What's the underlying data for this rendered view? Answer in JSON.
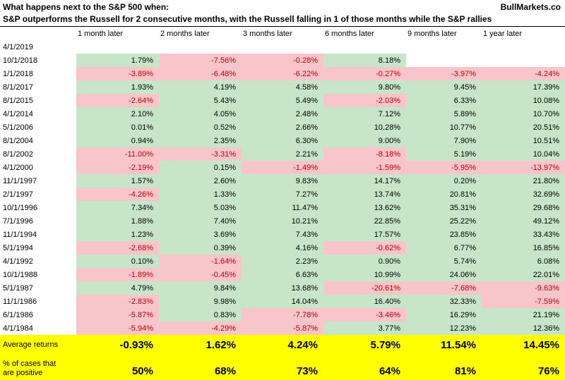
{
  "header": {
    "title": "What happens next to the S&P 500 when:",
    "brand": "BullMarkets.co",
    "subtitle": "S&P outperforms the Russell for 2 consecutive months, with the Russell falling in 1 of those months while the S&P rallies"
  },
  "colors": {
    "positive_bg": "#c7e5c9",
    "negative_bg": "#f8c6ca",
    "negative_text": "#c00000",
    "summary_bg": "#ffff00"
  },
  "chart_data": {
    "type": "table",
    "title": "What happens next to the S&P 500 when: S&P outperforms the Russell for 2 consecutive months, with the Russell falling in 1 of those months while the S&P rallies",
    "columns": [
      "1 month later",
      "2 months later",
      "3 months later",
      "6 months later",
      "9 months later",
      "1 year later"
    ],
    "rows": [
      {
        "date": "4/1/2019",
        "values": [
          "",
          "",
          "",
          "",
          "",
          ""
        ]
      },
      {
        "date": "10/1/2018",
        "values": [
          "1.79%",
          "-7.56%",
          "-0.28%",
          "8.18%",
          "",
          ""
        ]
      },
      {
        "date": "1/1/2018",
        "values": [
          "-3.89%",
          "-6.48%",
          "-6.22%",
          "-0.27%",
          "-3.97%",
          "-4.24%"
        ]
      },
      {
        "date": "8/1/2017",
        "values": [
          "1.93%",
          "4.19%",
          "4.58%",
          "9.80%",
          "9.45%",
          "17.39%"
        ]
      },
      {
        "date": "8/1/2015",
        "values": [
          "-2.64%",
          "5.43%",
          "5.49%",
          "-2.03%",
          "6.33%",
          "10.08%"
        ]
      },
      {
        "date": "4/1/2014",
        "values": [
          "2.10%",
          "4.05%",
          "2.48%",
          "7.12%",
          "5.89%",
          "10.70%"
        ]
      },
      {
        "date": "5/1/2006",
        "values": [
          "0.01%",
          "0.52%",
          "2.66%",
          "10.28%",
          "10.77%",
          "20.51%"
        ]
      },
      {
        "date": "8/1/2004",
        "values": [
          "0.94%",
          "2.35%",
          "6.30%",
          "9.00%",
          "7.90%",
          "10.51%"
        ]
      },
      {
        "date": "8/1/2002",
        "values": [
          "-11.00%",
          "-3.31%",
          "2.21%",
          "-8.18%",
          "5.19%",
          "10.04%"
        ]
      },
      {
        "date": "4/1/2000",
        "values": [
          "-2.19%",
          "0.15%",
          "-1.49%",
          "-1.59%",
          "-5.95%",
          "-13.97%"
        ]
      },
      {
        "date": "11/1/1997",
        "values": [
          "1.57%",
          "2.60%",
          "9.83%",
          "14.17%",
          "0.20%",
          "21.80%"
        ]
      },
      {
        "date": "2/1/1997",
        "values": [
          "-4.26%",
          "1.33%",
          "7.27%",
          "13.74%",
          "20.81%",
          "32.69%"
        ]
      },
      {
        "date": "10/1/1996",
        "values": [
          "7.34%",
          "5.03%",
          "11.47%",
          "13.62%",
          "35.31%",
          "29.68%"
        ]
      },
      {
        "date": "7/1/1996",
        "values": [
          "1.88%",
          "7.40%",
          "10.21%",
          "22.85%",
          "25.22%",
          "49.12%"
        ]
      },
      {
        "date": "11/1/1994",
        "values": [
          "1.23%",
          "3.69%",
          "7.43%",
          "17.57%",
          "23.85%",
          "33.43%"
        ]
      },
      {
        "date": "5/1/1994",
        "values": [
          "-2.68%",
          "0.39%",
          "4.16%",
          "-0.62%",
          "6.77%",
          "16.85%"
        ]
      },
      {
        "date": "4/1/1992",
        "values": [
          "0.10%",
          "-1.64%",
          "2.23%",
          "0.90%",
          "5.74%",
          "6.08%"
        ]
      },
      {
        "date": "10/1/1988",
        "values": [
          "-1.89%",
          "-0.45%",
          "6.63%",
          "10.99%",
          "24.06%",
          "22.01%"
        ]
      },
      {
        "date": "5/1/1987",
        "values": [
          "4.79%",
          "9.84%",
          "13.68%",
          "-20.61%",
          "-7.68%",
          "-9.63%"
        ]
      },
      {
        "date": "11/1/1986",
        "values": [
          "-2.83%",
          "9.98%",
          "14.04%",
          "16.40%",
          "32.33%",
          "-7.59%"
        ]
      },
      {
        "date": "6/1/1986",
        "values": [
          "-5.87%",
          "0.83%",
          "-7.78%",
          "-3.46%",
          "16.29%",
          "21.19%"
        ]
      },
      {
        "date": "4/1/1984",
        "values": [
          "-5.94%",
          "-4.29%",
          "-5.87%",
          "3.77%",
          "12.23%",
          "12.36%"
        ]
      }
    ],
    "average": {
      "label": "Average returns",
      "values": [
        "-0.93%",
        "1.62%",
        "4.24%",
        "5.79%",
        "11.54%",
        "14.45%"
      ]
    },
    "percent_positive": {
      "label_lines": [
        "% of cases that",
        "are positive"
      ],
      "values": [
        "50%",
        "68%",
        "73%",
        "64%",
        "81%",
        "76%"
      ]
    }
  }
}
